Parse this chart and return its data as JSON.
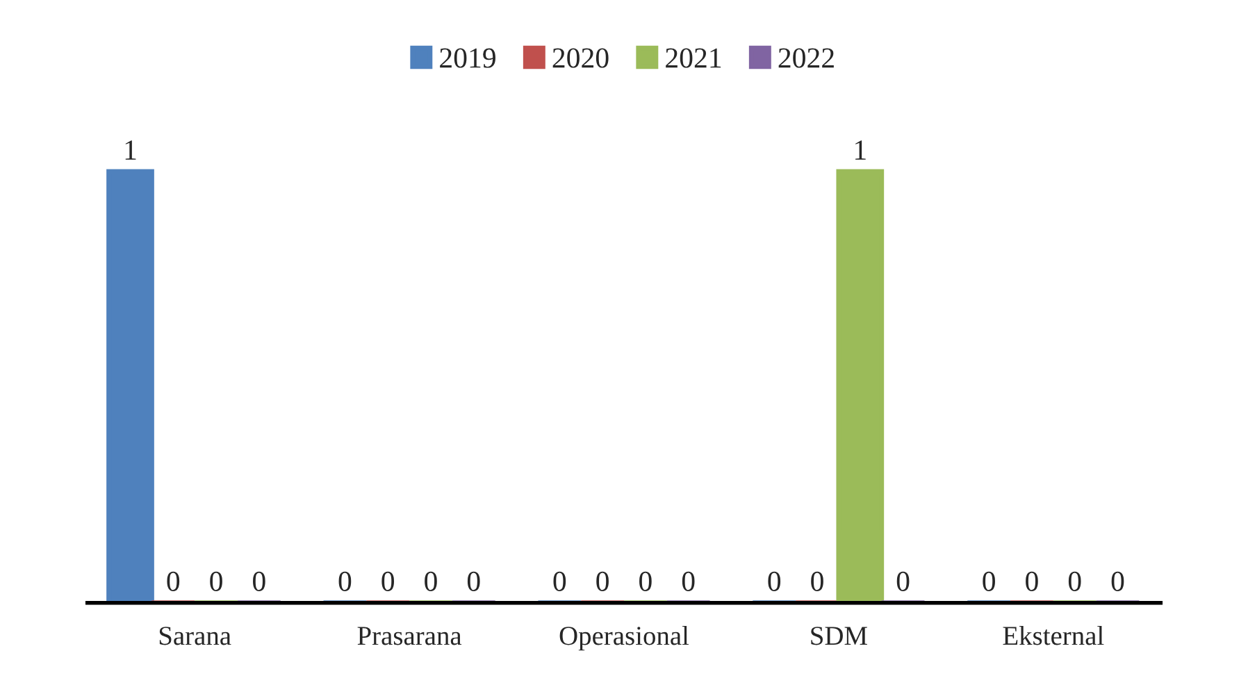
{
  "chart_data": {
    "type": "bar",
    "categories": [
      "Sarana",
      "Prasarana",
      "Operasional",
      "SDM",
      "Eksternal"
    ],
    "series": [
      {
        "name": "2019",
        "color": "#4f81bd",
        "values": [
          1,
          0,
          0,
          0,
          0
        ]
      },
      {
        "name": "2020",
        "color": "#c0504d",
        "values": [
          0,
          0,
          0,
          0,
          0
        ]
      },
      {
        "name": "2021",
        "color": "#9bbb59",
        "values": [
          0,
          0,
          0,
          1,
          0
        ]
      },
      {
        "name": "2022",
        "color": "#8064a2",
        "values": [
          0,
          0,
          0,
          0,
          0
        ]
      }
    ],
    "data_labels": true,
    "legend": "top",
    "grid": false,
    "tick_labels": "x"
  }
}
